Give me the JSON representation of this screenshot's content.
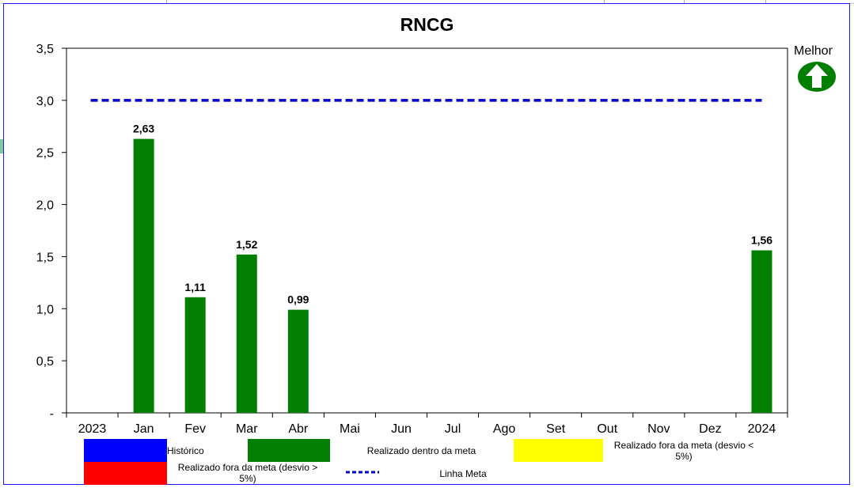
{
  "title": "RNCG",
  "better_label": "Melhor",
  "better_icon": "green-up-arrow-icon",
  "chart_data": {
    "type": "bar",
    "title": "RNCG",
    "categories": [
      "2023",
      "Jan",
      "Fev",
      "Mar",
      "Abr",
      "Mai",
      "Jun",
      "Jul",
      "Ago",
      "Set",
      "Out",
      "Nov",
      "Dez",
      "2024"
    ],
    "values": [
      null,
      2.63,
      1.11,
      1.52,
      0.99,
      null,
      null,
      null,
      null,
      null,
      null,
      null,
      null,
      1.56
    ],
    "data_labels": [
      "",
      "2,63",
      "1,11",
      "1,52",
      "0,99",
      "",
      "",
      "",
      "",
      "",
      "",
      "",
      "",
      "1,56"
    ],
    "bar_color": "#007f00",
    "target": {
      "name": "Linha Meta",
      "value": 3.0,
      "color": "#0000cc",
      "style": "dashed"
    },
    "ylim": [
      0,
      3.5
    ],
    "yticks": [
      0,
      0.5,
      1.0,
      1.5,
      2.0,
      2.5,
      3.0,
      3.5
    ],
    "ytick_labels": [
      "-",
      "0,5",
      "1,0",
      "1,5",
      "2,0",
      "2,5",
      "3,0",
      "3,5"
    ],
    "grid": false,
    "legend_position": "bottom"
  },
  "legend": [
    {
      "label": "Histórico",
      "color": "#0000ff"
    },
    {
      "label": "Realizado dentro da meta",
      "color": "#007f00"
    },
    {
      "label": "Realizado fora da meta (desvio < 5%)",
      "color": "#ffff00"
    },
    {
      "label": "Realizado fora da meta (desvio > 5%)",
      "color": "#ff0000"
    },
    {
      "label": "Linha Meta",
      "color": "#0000cc"
    }
  ]
}
